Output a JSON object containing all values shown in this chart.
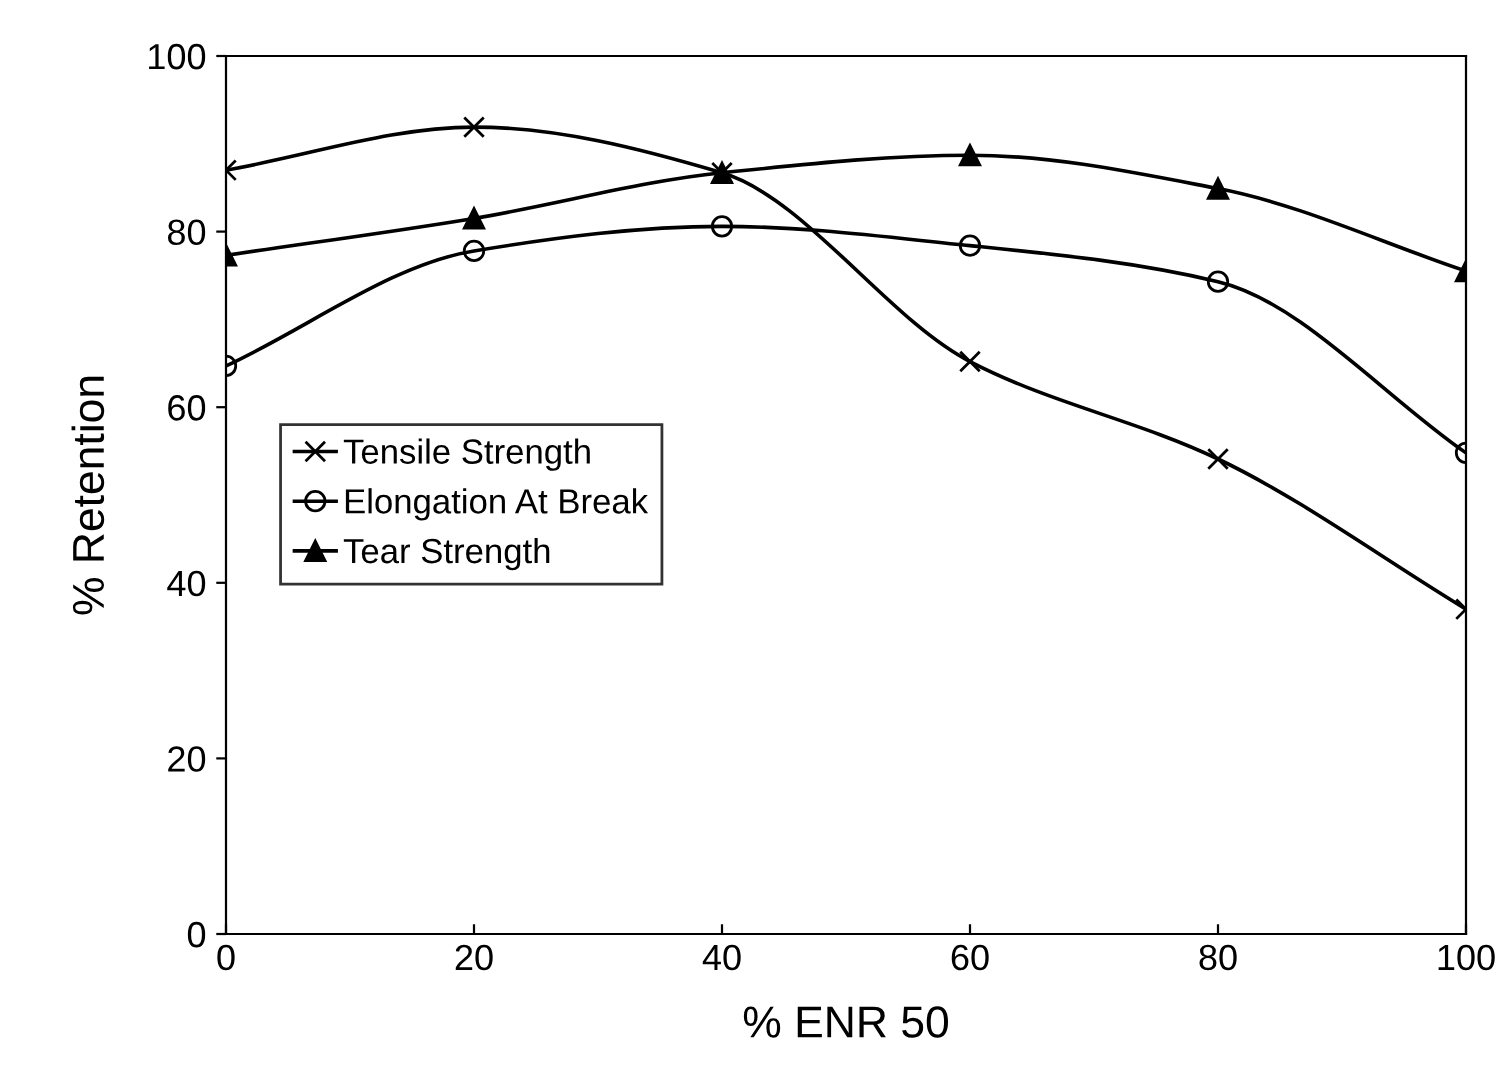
{
  "chart_data": {
    "type": "line",
    "xlabel": "% ENR 50",
    "ylabel": "% Retention",
    "x": [
      0,
      20,
      40,
      60,
      80,
      100
    ],
    "series": [
      {
        "name": "Tensile Strength",
        "color": "#000000",
        "marker": "cross",
        "values": [
          87.0,
          91.9,
          86.7,
          65.2,
          54.1,
          37.0
        ]
      },
      {
        "name": "Elongation At Break",
        "color": "#000000",
        "marker": "circle",
        "values": [
          64.7,
          77.8,
          80.6,
          78.4,
          74.3,
          54.8
        ]
      },
      {
        "name": "Tear Strength",
        "color": "#000000",
        "marker": "triangle",
        "values": [
          77.3,
          81.5,
          86.7,
          88.7,
          84.9,
          75.5
        ]
      }
    ],
    "xlim": [
      0,
      100
    ],
    "xticks": [
      0,
      20,
      40,
      60,
      80,
      100
    ],
    "ylim": [
      0,
      100
    ],
    "yticks": [
      0,
      20,
      40,
      60,
      80,
      100
    ],
    "grid": false,
    "legend": "left",
    "line_style": "solid"
  }
}
